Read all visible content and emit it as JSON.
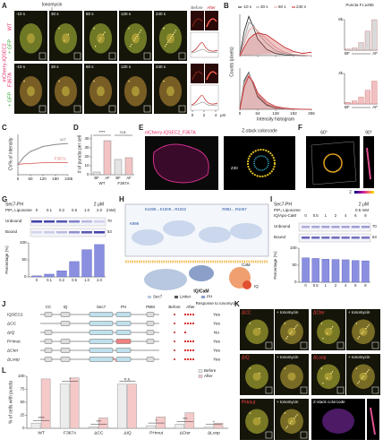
{
  "figure": {
    "A": {
      "letter": "A",
      "stimulus": "Ionomycin",
      "times": [
        "-10 s",
        "30 s",
        "60 s",
        "120 s",
        "240 s"
      ],
      "construct": "mCherry-IQSEC2",
      "cotransfect": "+ GFP",
      "rows": [
        "WT",
        "F367A"
      ],
      "zoom": [
        "Before",
        "After"
      ],
      "profile_ticks": [
        0,
        2,
        4
      ],
      "profile_unit": "μm"
    },
    "B": {
      "letter": "B",
      "legend": [
        "-10 s",
        "30 s",
        "60 s",
        "240 s"
      ],
      "colors": [
        "#222222",
        "#9a9a9a",
        "#e8a0a0",
        "#c02020"
      ],
      "xlabel": "Intensity histogram",
      "ylabel": "Counts (pixels)",
      "xlim": [
        0,
        256
      ],
      "xticks": [
        0,
        64,
        128,
        192,
        256
      ],
      "ylim": [
        0,
        100
      ],
      "x": [
        0,
        16,
        32,
        48,
        64,
        96,
        128,
        160,
        192,
        224,
        256
      ],
      "rows": [
        {
          "series": [
            [
              0,
              60,
              95,
              70,
              40,
              15,
              5,
              2,
              1,
              0,
              0
            ],
            [
              0,
              40,
              80,
              75,
              55,
              30,
              12,
              5,
              2,
              1,
              0
            ],
            [
              0,
              30,
              60,
              70,
              60,
              40,
              20,
              8,
              3,
              1,
              0
            ],
            [
              0,
              20,
              40,
              50,
              55,
              50,
              35,
              20,
              10,
              5,
              8
            ]
          ],
          "inset_values": [
            300,
            600,
            2000,
            5000,
            8000
          ],
          "inset_ylim": [
            0,
            8000
          ],
          "inset_tick": {
            "value": 8000,
            "label": "8k"
          }
        },
        {
          "series": [
            [
              0,
              70,
              90,
              60,
              30,
              10,
              3,
              1,
              0,
              0,
              0
            ],
            [
              0,
              65,
              88,
              62,
              33,
              12,
              4,
              1,
              0,
              0,
              0
            ],
            [
              0,
              60,
              85,
              64,
              36,
              14,
              5,
              2,
              0,
              0,
              0
            ],
            [
              0,
              55,
              80,
              66,
              40,
              18,
              7,
              3,
              1,
              0,
              0
            ]
          ],
          "inset_values": [
            200,
            400,
            900,
            1800,
            3000
          ],
          "inset_ylim": [
            0,
            4000
          ],
          "inset_tick": {
            "value": 4000,
            "label": "4k"
          }
        }
      ],
      "inset_title": "Puncta F.I.≥255",
      "inset_labels": [
        "BF",
        "AF"
      ]
    },
    "C": {
      "letter": "C",
      "ylabel": "CV% of intensity",
      "xlim": [
        0,
        240
      ],
      "xticks": [
        0,
        60,
        120,
        180,
        240
      ],
      "xunit": "s",
      "ylim": [
        10,
        50
      ],
      "x": [
        0,
        30,
        60,
        120,
        180,
        240
      ],
      "series": [
        {
          "name": "F367A",
          "color": "#e07a7a",
          "values": [
            20,
            21,
            21,
            22,
            22,
            22
          ]
        },
        {
          "name": "WT",
          "color": "#888888",
          "values": [
            20,
            28,
            33,
            38,
            40,
            41
          ]
        }
      ]
    },
    "D": {
      "letter": "D",
      "ylabel": "# of puncta per cell",
      "ylim": [
        0,
        45
      ],
      "yticks": [
        0,
        10,
        20,
        30,
        40
      ],
      "groups": [
        "WT",
        "F367A"
      ],
      "categories": [
        "BF",
        "AF",
        "BF",
        "AF"
      ],
      "values": [
        3,
        38,
        17,
        19
      ],
      "colors": [
        "#e4e4e4",
        "#f3c3c3",
        "#e4e4e4",
        "#f3c3c3"
      ],
      "significance": [
        "****",
        "n.s."
      ]
    },
    "E": {
      "letter": "E",
      "title": "mCherry-IQSEC2_F367A",
      "zstack": "Z-stack colorcode",
      "zlabel": "Z30"
    },
    "F": {
      "letter": "F",
      "angles": [
        "60°",
        "90°"
      ],
      "axis": "Z"
    },
    "G": {
      "letter": "G",
      "protein": "Sec7-PH",
      "conc": "2 μM",
      "liposome": "PIP₂ Liposome",
      "categories": [
        "0",
        "0.1",
        "0.2",
        "0.5",
        "1.0",
        "2.0"
      ],
      "unit": "(mM)",
      "gel": [
        "Unbound",
        "Bound"
      ],
      "mw": [
        "70",
        "53"
      ],
      "ylabel": "Percentage (%)",
      "ylim": [
        0,
        100
      ],
      "yticks": [
        0,
        50,
        100
      ],
      "values": [
        3,
        8,
        18,
        45,
        80,
        95
      ],
      "color": "#8a8fe0"
    },
    "H": {
      "letter": "H",
      "residues": [
        "K998",
        "K1006…K1009…R1022",
        "R981…R1067"
      ],
      "complex": "IQ/CaM",
      "parts": [
        "CaM",
        "IQ"
      ],
      "legend": [
        "Sec7",
        "Linker",
        "PH"
      ]
    },
    "I": {
      "letter": "I",
      "protein": "Sec7-PH",
      "conc": "2 μM",
      "liposome": "PIP₂ Liposome",
      "lipconc": "0.5 mM",
      "titrant": "IQ/Apo-CaM",
      "categories": [
        "0",
        "0.5",
        "1",
        "2",
        "4",
        "6",
        "8"
      ],
      "gel": [
        "Unbound",
        "Bound"
      ],
      "mw": [
        "70",
        "53"
      ],
      "ylabel": "Percentage (%)",
      "ylim": [
        0,
        100
      ],
      "yticks": [
        0,
        50,
        100
      ],
      "values": [
        72,
        70,
        68,
        67,
        66,
        64,
        63
      ],
      "color": "#8a8fe0"
    },
    "J": {
      "letter": "J",
      "domains": [
        "CC",
        "IQ",
        "Sec7",
        "PH",
        "PBM"
      ],
      "constructs": [
        "IQSEC2",
        "ΔCC",
        "ΔIQ",
        "PHmut",
        "ΔCter",
        "ΔLoop"
      ],
      "before": "Before",
      "after": "After",
      "response_title": "Response to ionomycin",
      "responses": [
        "Yes",
        "Yes",
        "No",
        "Yes",
        "Yes",
        "Yes"
      ]
    },
    "K": {
      "letter": "K",
      "panels": [
        "ΔCC",
        "ΔCter",
        "ΔIQ",
        "ΔLoop",
        "PHmut"
      ],
      "treatment": "+ Ionomycin",
      "zstack": "Z-stack colorcode",
      "angle": "90°"
    },
    "L": {
      "letter": "L",
      "ylabel": "% of cells with puncta",
      "ylim": [
        0,
        100
      ],
      "yticks": [
        0,
        25,
        50,
        75,
        100
      ],
      "categories": [
        "WT",
        "F367A",
        "ΔCC",
        "ΔIQ",
        "PHmut",
        "ΔCter",
        "ΔLoop"
      ],
      "series": [
        {
          "name": "Before",
          "color": "#ececec",
          "values": [
            10,
            85,
            3,
            85,
            5,
            8,
            2
          ]
        },
        {
          "name": "After",
          "color": "#f6c9c9",
          "values": [
            95,
            97,
            20,
            85,
            22,
            30,
            10
          ]
        }
      ],
      "significance": [
        "****",
        "*",
        "***",
        "n.s.",
        "*",
        "***",
        "*"
      ]
    }
  }
}
